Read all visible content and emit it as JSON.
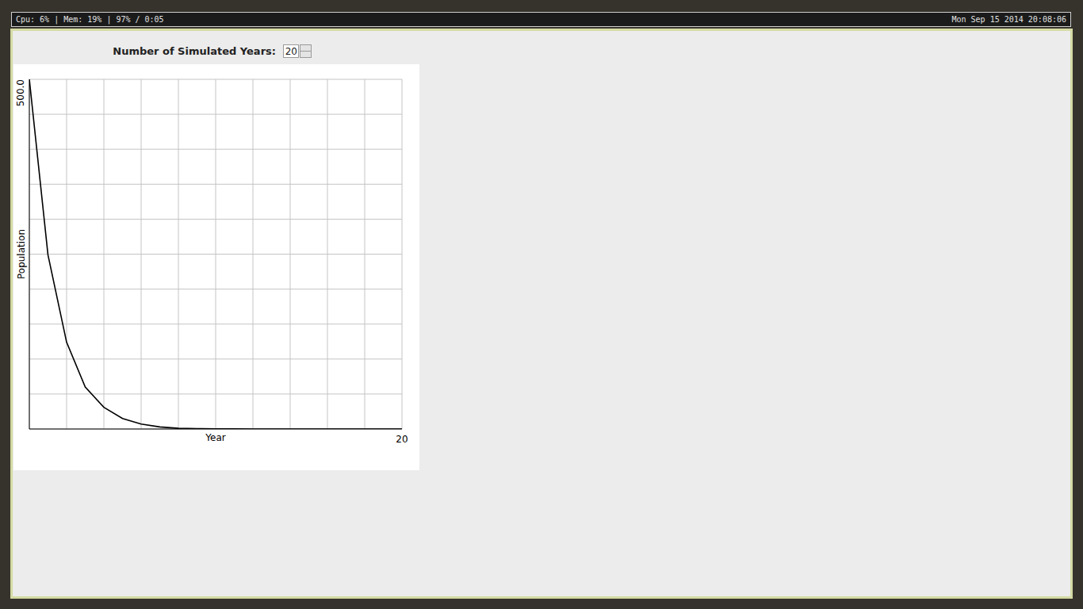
{
  "status_bar": {
    "left": "Cpu: 6% | Mem: 19% | 97% / 0:05",
    "right": "Mon Sep 15 2014 20:08:06"
  },
  "controls": {
    "label": "Number of Simulated Years:",
    "value": 20
  },
  "chart_data": {
    "type": "line",
    "x_label": "Year",
    "y_label": "Population",
    "x": [
      0,
      1,
      2,
      3,
      4,
      5,
      6,
      7,
      8,
      9,
      10,
      11,
      12,
      13,
      14,
      15,
      16,
      17,
      18,
      19,
      20
    ],
    "values": [
      500,
      249,
      124,
      60,
      31,
      15,
      7,
      3,
      1,
      0.5,
      0.2,
      0.1,
      0,
      0,
      0,
      0,
      0,
      0,
      0,
      0,
      0
    ],
    "color": "#000000",
    "xlim": [
      0,
      20
    ],
    "xticks": [
      {
        "value": 0,
        "label": null
      },
      {
        "value": 2,
        "label": null
      },
      {
        "value": 4,
        "label": null
      },
      {
        "value": 6,
        "label": null
      },
      {
        "value": 8,
        "label": null
      },
      {
        "value": 10,
        "label": null
      },
      {
        "value": 12,
        "label": null
      },
      {
        "value": 14,
        "label": null
      },
      {
        "value": 16,
        "label": null
      },
      {
        "value": 18,
        "label": null
      },
      20
    ],
    "ylim": [
      0,
      500
    ],
    "yticks": [
      {
        "value": 0,
        "label": null
      },
      {
        "value": 50,
        "label": null
      },
      {
        "value": 100,
        "label": null
      },
      {
        "value": 150,
        "label": null
      },
      {
        "value": 200,
        "label": null
      },
      {
        "value": 250,
        "label": null
      },
      {
        "value": 300,
        "label": null
      },
      {
        "value": 350,
        "label": null
      },
      {
        "value": 400,
        "label": null
      },
      {
        "value": 450,
        "label": null
      },
      {
        "value": 500,
        "label": "500.0"
      }
    ],
    "grid": true
  }
}
